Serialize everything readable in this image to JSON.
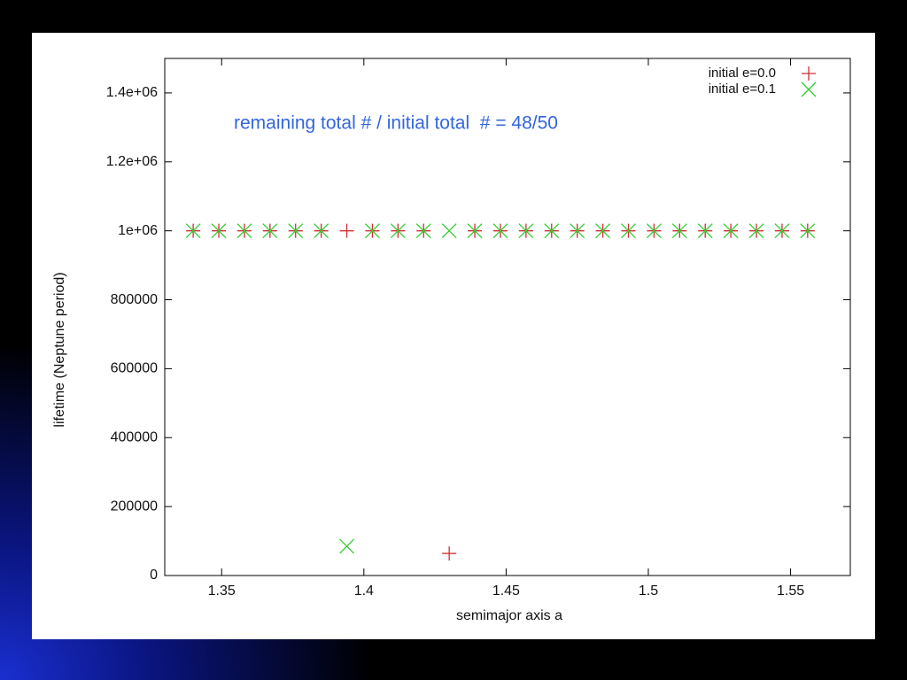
{
  "chart_data": {
    "type": "scatter",
    "annotation": "remaining total # / initial total  # = 48/50",
    "x_label": "semimajor axis a",
    "y_label": "lifetime (Neptune period)",
    "x": [
      1.34,
      1.349,
      1.358,
      1.367,
      1.376,
      1.385,
      1.394,
      1.403,
      1.412,
      1.421,
      1.43,
      1.439,
      1.448,
      1.457,
      1.466,
      1.475,
      1.484,
      1.493,
      1.502,
      1.511,
      1.52,
      1.529,
      1.538,
      1.547,
      1.556
    ],
    "series": [
      {
        "name": "initial e=0.0",
        "color": "#d03030",
        "marker": "plus",
        "values": [
          1000000,
          1000000,
          1000000,
          1000000,
          1000000,
          1000000,
          1000000,
          1000000,
          1000000,
          1000000,
          64000,
          1000000,
          1000000,
          1000000,
          1000000,
          1000000,
          1000000,
          1000000,
          1000000,
          1000000,
          1000000,
          1000000,
          1000000,
          1000000,
          1000000
        ]
      },
      {
        "name": "initial e=0.1",
        "color": "#30d030",
        "marker": "cross",
        "values": [
          1000000,
          1000000,
          1000000,
          1000000,
          1000000,
          1000000,
          85000,
          1000000,
          1000000,
          1000000,
          1000000,
          1000000,
          1000000,
          1000000,
          1000000,
          1000000,
          1000000,
          1000000,
          1000000,
          1000000,
          1000000,
          1000000,
          1000000,
          1000000,
          1000000
        ]
      }
    ],
    "xlim": [
      1.33,
      1.571
    ],
    "ylim": [
      0,
      1500000
    ],
    "xticks": [
      1.35,
      1.4,
      1.45,
      1.5,
      1.55
    ],
    "yticks": [
      0,
      200000,
      400000,
      600000,
      800000,
      {
        "value": 1000000,
        "label": "1e+06"
      },
      {
        "value": 1200000,
        "label": "1.2e+06"
      },
      {
        "value": 1400000,
        "label": "1.4e+06"
      }
    ],
    "annotation_color": "#3366dd",
    "legend": "top-right"
  }
}
